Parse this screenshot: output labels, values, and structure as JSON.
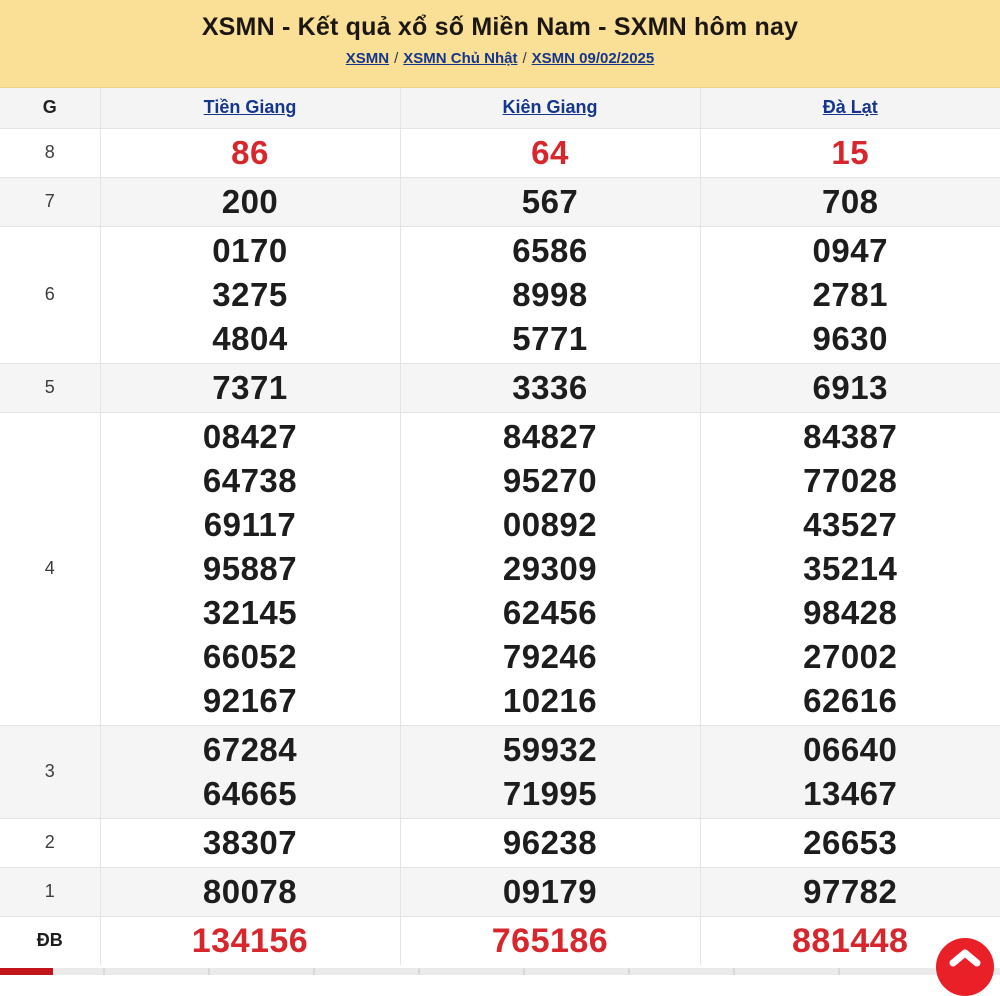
{
  "banner": {
    "title": "XSMN - Kết quả xổ số Miền Nam - SXMN hôm nay",
    "separator": "/",
    "breadcrumb": [
      {
        "label": "XSMN"
      },
      {
        "label": "XSMN Chủ Nhật"
      },
      {
        "label": "XSMN 09/02/2025"
      }
    ]
  },
  "table": {
    "header": {
      "g_label": "G",
      "columns": [
        "Tiền Giang",
        "Kiên Giang",
        "Đà Lạt"
      ]
    },
    "rows": [
      {
        "label": "8",
        "highlight": true,
        "bold_label": false,
        "values": [
          [
            "86"
          ],
          [
            "64"
          ],
          [
            "15"
          ]
        ]
      },
      {
        "label": "7",
        "highlight": false,
        "bold_label": false,
        "values": [
          [
            "200"
          ],
          [
            "567"
          ],
          [
            "708"
          ]
        ]
      },
      {
        "label": "6",
        "highlight": false,
        "bold_label": false,
        "values": [
          [
            "0170",
            "3275",
            "4804"
          ],
          [
            "6586",
            "8998",
            "5771"
          ],
          [
            "0947",
            "2781",
            "9630"
          ]
        ]
      },
      {
        "label": "5",
        "highlight": false,
        "bold_label": false,
        "values": [
          [
            "7371"
          ],
          [
            "3336"
          ],
          [
            "6913"
          ]
        ]
      },
      {
        "label": "4",
        "highlight": false,
        "bold_label": false,
        "values": [
          [
            "08427",
            "64738",
            "69117",
            "95887",
            "32145",
            "66052",
            "92167"
          ],
          [
            "84827",
            "95270",
            "00892",
            "29309",
            "62456",
            "79246",
            "10216"
          ],
          [
            "84387",
            "77028",
            "43527",
            "35214",
            "98428",
            "27002",
            "62616"
          ]
        ]
      },
      {
        "label": "3",
        "highlight": false,
        "bold_label": false,
        "values": [
          [
            "67284",
            "64665"
          ],
          [
            "59932",
            "71995"
          ],
          [
            "06640",
            "13467"
          ]
        ]
      },
      {
        "label": "2",
        "highlight": false,
        "bold_label": false,
        "values": [
          [
            "38307"
          ],
          [
            "96238"
          ],
          [
            "26653"
          ]
        ]
      },
      {
        "label": "1",
        "highlight": false,
        "bold_label": false,
        "values": [
          [
            "80078"
          ],
          [
            "09179"
          ],
          [
            "97782"
          ]
        ]
      },
      {
        "label": "ĐB",
        "highlight": true,
        "bold_label": true,
        "values": [
          [
            "134156"
          ],
          [
            "765186"
          ],
          [
            "881448"
          ]
        ]
      }
    ]
  },
  "scroll_top": {
    "icon": "chevron-up"
  },
  "colors": {
    "accent_red": "#d7262c",
    "link_navy": "#16368c",
    "banner_yellow": "#f9e096",
    "button_red": "#e92028",
    "strip_red": "#c2151b",
    "row_gray": "#f5f5f6"
  }
}
